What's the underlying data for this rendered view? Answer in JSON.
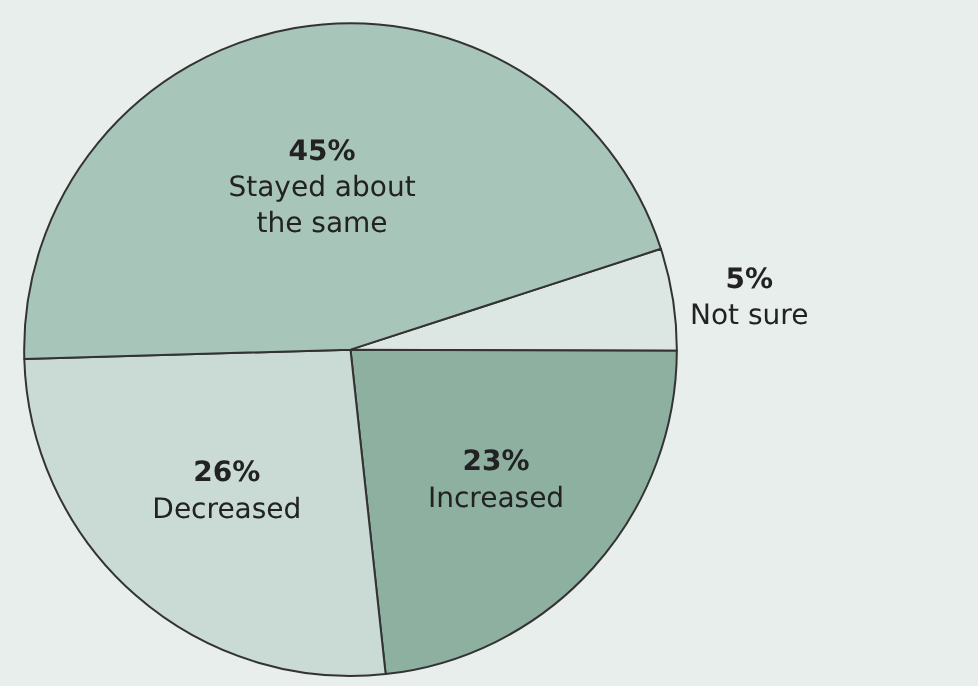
{
  "chart_data": {
    "type": "pie",
    "categories": [
      "Not sure",
      "Increased",
      "Decreased",
      "Stayed about the same"
    ],
    "values": [
      5,
      23,
      26,
      45
    ],
    "colors": [
      "#dce7e3",
      "#8db0a1",
      "#c9dbd4",
      "#a8c5b9"
    ],
    "value_labels": [
      "5%",
      "23%",
      "26%",
      "45%"
    ],
    "legend": false
  }
}
